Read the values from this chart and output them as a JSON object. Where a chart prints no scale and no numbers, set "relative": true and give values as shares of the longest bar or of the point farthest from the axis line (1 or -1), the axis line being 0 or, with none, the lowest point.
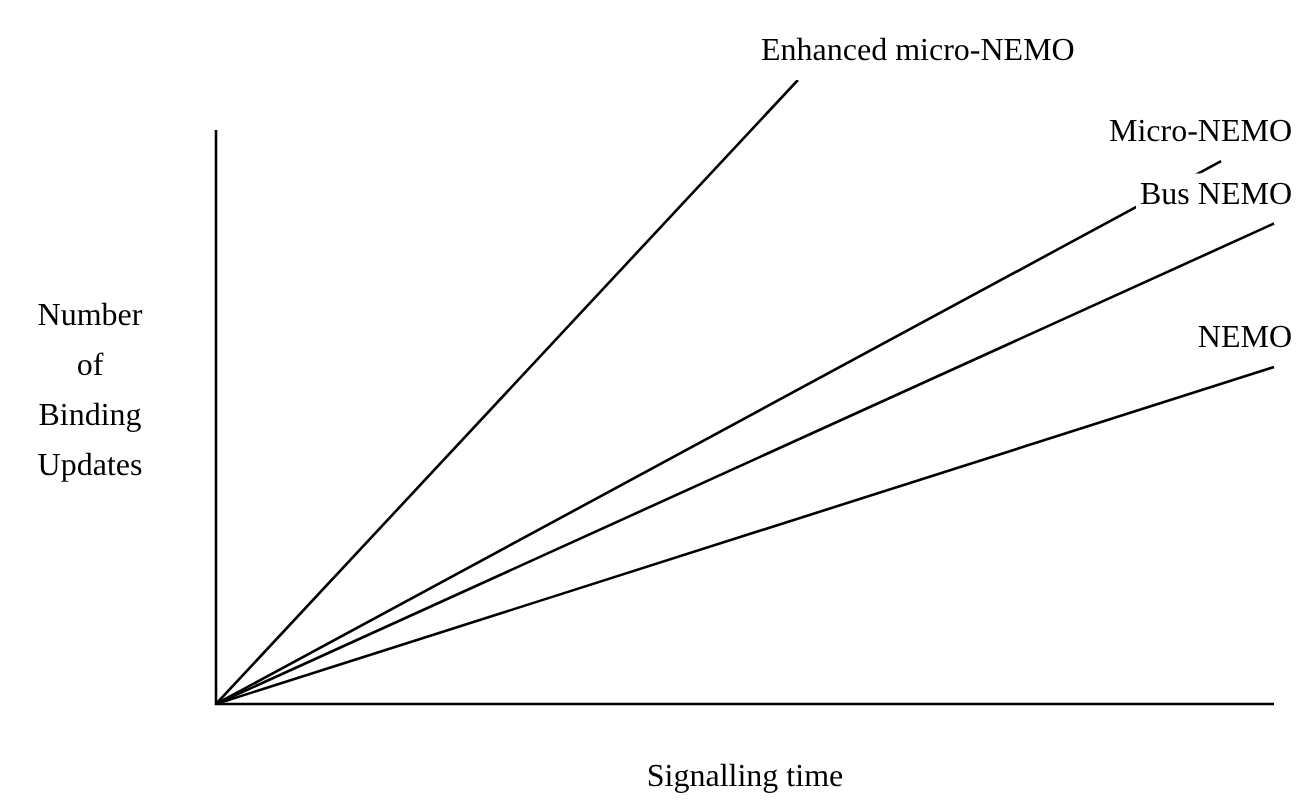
{
  "chart_data": {
    "type": "line",
    "relative": true,
    "xlabel": "Signalling time",
    "ylabel": "Number of Binding Updates",
    "tick_labels": false,
    "legend": false,
    "marker": "none",
    "categories": [
      null,
      null,
      null,
      null,
      null,
      null,
      null,
      null,
      null,
      null,
      null,
      null,
      null,
      null,
      null,
      null,
      null,
      null,
      null,
      null,
      null
    ],
    "series": [
      {
        "name": "Enhanced micro-NEMO",
        "color": "#000000",
        "values": [
          0,
          null,
          null,
          null,
          null,
          null,
          null,
          null,
          null,
          null,
          null,
          1,
          null,
          null,
          null,
          null,
          null,
          null,
          null,
          null,
          null
        ]
      },
      {
        "name": "Micro-NEMO",
        "color": "#000000",
        "values": [
          0,
          null,
          null,
          null,
          null,
          null,
          null,
          null,
          null,
          null,
          null,
          null,
          null,
          null,
          null,
          null,
          null,
          null,
          null,
          0.87,
          null
        ]
      },
      {
        "name": "Bus NEMO",
        "color": "#000000",
        "values": [
          0,
          null,
          null,
          null,
          null,
          null,
          null,
          null,
          null,
          null,
          null,
          null,
          null,
          null,
          null,
          null,
          null,
          null,
          null,
          null,
          0.77
        ]
      },
      {
        "name": "NEMO",
        "color": "#000000",
        "values": [
          0,
          null,
          null,
          null,
          null,
          null,
          null,
          null,
          null,
          null,
          null,
          null,
          null,
          null,
          null,
          null,
          null,
          null,
          null,
          null,
          0.54
        ]
      }
    ]
  }
}
